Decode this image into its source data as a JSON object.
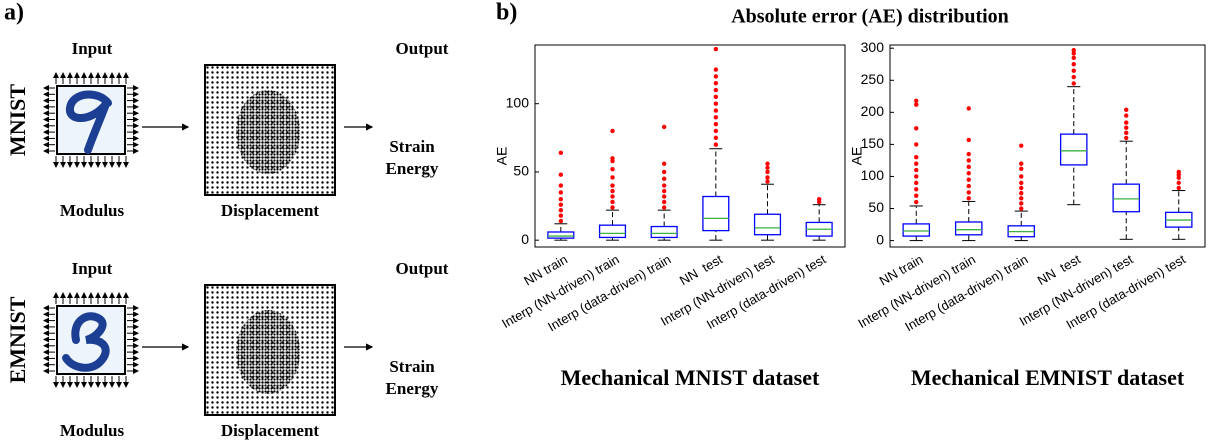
{
  "panel_a": {
    "label": "a)",
    "rows": [
      {
        "name": "MNIST",
        "input": "Input",
        "output": "Output",
        "modulus": "Modulus",
        "displacement": "Displacement",
        "result": [
          "Strain",
          "Energy"
        ]
      },
      {
        "name": "EMNIST",
        "input": "Input",
        "output": "Output",
        "modulus": "Modulus",
        "displacement": "Displacement",
        "result": [
          "Strain",
          "Energy"
        ]
      }
    ]
  },
  "panel_b": {
    "label": "b)",
    "title": "Absolute error (AE) distribution"
  },
  "chart_data": [
    {
      "type": "box",
      "xlabel": "Mechanical MNIST dataset",
      "ylabel": "AE",
      "box_color": "#0000ff",
      "median_color": "#3cb043",
      "outlier_color": "#ff0000",
      "categories": [
        "NN train",
        "Interp (NN-driven) train",
        "Interp (data-driven) train",
        "NN  test",
        "Interp (NN-driven) test",
        "Interp (data-driven) test"
      ],
      "ylim": [
        -5,
        143
      ],
      "yticks": [
        0,
        50,
        100
      ],
      "boxes": [
        {
          "low": 0,
          "q1": 1.5,
          "median": 3,
          "q3": 6,
          "high": 12,
          "outliers": [
            14,
            18,
            22,
            26,
            30,
            35,
            40,
            48,
            64
          ]
        },
        {
          "low": 0,
          "q1": 2,
          "median": 5,
          "q3": 11,
          "high": 22,
          "outliers": [
            24,
            28,
            32,
            36,
            40,
            46,
            52,
            58,
            60,
            80
          ]
        },
        {
          "low": 0,
          "q1": 2,
          "median": 5,
          "q3": 10,
          "high": 22,
          "outliers": [
            24,
            28,
            32,
            36,
            40,
            45,
            50,
            56,
            83
          ]
        },
        {
          "low": 0,
          "q1": 7,
          "median": 16,
          "q3": 32,
          "high": 67,
          "outliers": [
            70,
            75,
            80,
            85,
            90,
            95,
            100,
            105,
            110,
            115,
            120,
            125,
            140
          ]
        },
        {
          "low": 0,
          "q1": 4,
          "median": 9,
          "q3": 19,
          "high": 41,
          "outliers": [
            43,
            46,
            50,
            53,
            56
          ]
        },
        {
          "low": 0,
          "q1": 3,
          "median": 8,
          "q3": 13,
          "high": 26,
          "outliers": [
            28,
            30
          ]
        }
      ]
    },
    {
      "type": "box",
      "xlabel": "Mechanical EMNIST dataset",
      "ylabel": "AE",
      "box_color": "#0000ff",
      "median_color": "#3cb043",
      "outlier_color": "#ff0000",
      "categories": [
        "NN train",
        "Interp (NN-driven) train",
        "Interp (data-driven) train",
        "NN  test",
        "Interp (NN-driven) test",
        "Interp (data-driven) test"
      ],
      "ylim": [
        -10,
        305
      ],
      "yticks": [
        0,
        50,
        100,
        150,
        200,
        250,
        300
      ],
      "boxes": [
        {
          "low": 0,
          "q1": 7,
          "median": 15,
          "q3": 26,
          "high": 54,
          "outliers": [
            60,
            70,
            80,
            90,
            100,
            110,
            120,
            130,
            150,
            175,
            212,
            218
          ]
        },
        {
          "low": 0,
          "q1": 9,
          "median": 17,
          "q3": 29,
          "high": 61,
          "outliers": [
            66,
            75,
            85,
            95,
            105,
            115,
            125,
            135,
            157,
            206
          ]
        },
        {
          "low": 0,
          "q1": 6,
          "median": 14,
          "q3": 23,
          "high": 46,
          "outliers": [
            50,
            58,
            66,
            74,
            82,
            90,
            100,
            112,
            120,
            148
          ]
        },
        {
          "low": 56,
          "q1": 118,
          "median": 140,
          "q3": 166,
          "high": 240,
          "outliers": [
            245,
            255,
            265,
            275,
            285,
            292,
            297
          ]
        },
        {
          "low": 2,
          "q1": 45,
          "median": 65,
          "q3": 88,
          "high": 155,
          "outliers": [
            160,
            168,
            176,
            184,
            195,
            204
          ]
        },
        {
          "low": 2,
          "q1": 21,
          "median": 32,
          "q3": 44,
          "high": 78,
          "outliers": [
            82,
            90,
            98,
            103,
            107
          ]
        }
      ]
    }
  ]
}
